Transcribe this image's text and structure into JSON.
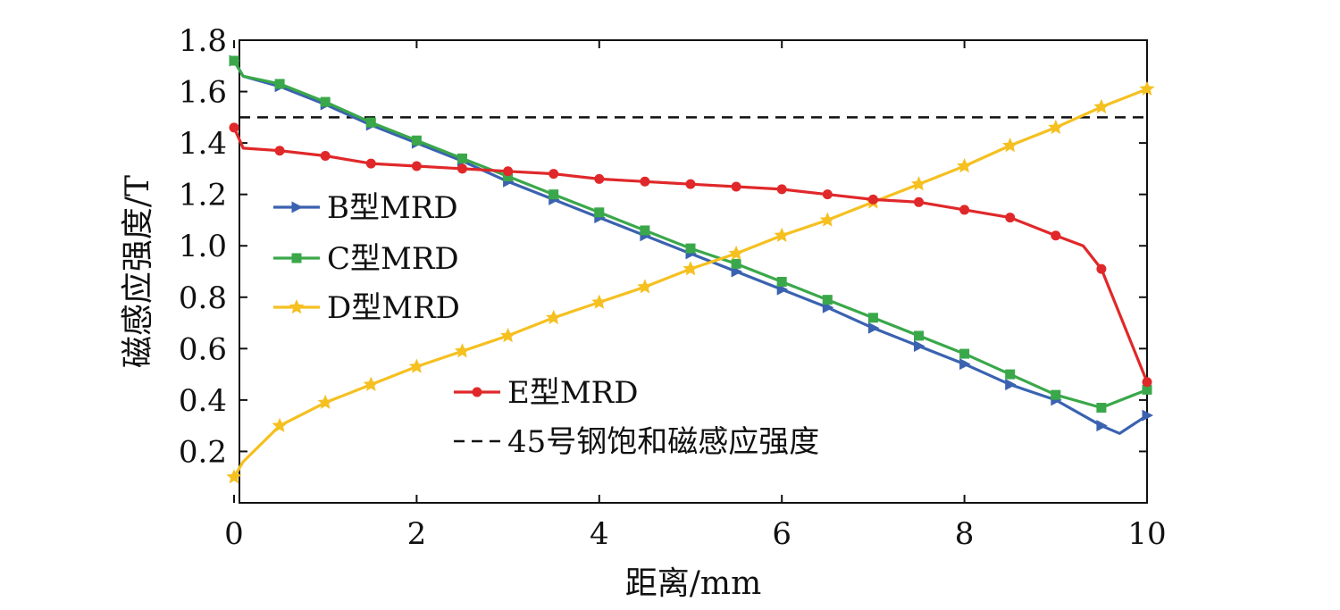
{
  "chart_data": {
    "type": "line",
    "title": "",
    "xlabel": "距离/mm",
    "ylabel": "磁感应强度/T",
    "xlim": [
      0,
      10
    ],
    "ylim": [
      0,
      1.8
    ],
    "xticks": [
      "0",
      "2",
      "4",
      "6",
      "8",
      "10"
    ],
    "xtick_values": [
      0,
      2,
      4,
      6,
      8,
      10
    ],
    "yticks": [
      "0.2",
      "0.4",
      "0.6",
      "0.8",
      "1.0",
      "1.2",
      "1.4",
      "1.6",
      "1.8"
    ],
    "ytick_values": [
      0.2,
      0.4,
      0.6,
      0.8,
      1.0,
      1.2,
      1.4,
      1.6,
      1.8
    ],
    "grid": false,
    "legend_position": "left",
    "series": [
      {
        "name": "B型MRD",
        "color": "#3a62b0",
        "marker": "triangle-right",
        "x": [
          0,
          0.1,
          0.5,
          1.0,
          1.5,
          2.0,
          2.5,
          3.0,
          3.5,
          4.0,
          4.5,
          5.0,
          5.5,
          6.0,
          6.5,
          7.0,
          7.5,
          8.0,
          8.5,
          9.0,
          9.5,
          9.7,
          10.0
        ],
        "y": [
          1.72,
          1.66,
          1.62,
          1.55,
          1.47,
          1.4,
          1.33,
          1.25,
          1.18,
          1.11,
          1.04,
          0.97,
          0.9,
          0.83,
          0.76,
          0.68,
          0.61,
          0.54,
          0.46,
          0.4,
          0.3,
          0.27,
          0.34
        ],
        "marker_indices": [
          0,
          2,
          3,
          4,
          5,
          6,
          7,
          8,
          9,
          10,
          11,
          12,
          13,
          14,
          15,
          16,
          17,
          18,
          19,
          20,
          22
        ]
      },
      {
        "name": "C型MRD",
        "color": "#3aa84a",
        "marker": "square",
        "x": [
          0,
          0.1,
          0.5,
          1.0,
          1.5,
          2.0,
          2.5,
          3.0,
          3.5,
          4.0,
          4.5,
          5.0,
          5.5,
          6.0,
          6.5,
          7.0,
          7.5,
          8.0,
          8.5,
          9.0,
          9.5,
          10.0
        ],
        "y": [
          1.72,
          1.66,
          1.63,
          1.56,
          1.48,
          1.41,
          1.34,
          1.27,
          1.2,
          1.13,
          1.06,
          0.99,
          0.93,
          0.86,
          0.79,
          0.72,
          0.65,
          0.58,
          0.5,
          0.42,
          0.37,
          0.44
        ],
        "marker_indices": [
          0,
          2,
          3,
          4,
          5,
          6,
          7,
          8,
          9,
          10,
          11,
          12,
          13,
          14,
          15,
          16,
          17,
          18,
          19,
          20,
          21
        ]
      },
      {
        "name": "D型MRD",
        "color": "#f5c020",
        "marker": "star",
        "x": [
          0,
          0.1,
          0.5,
          1.0,
          1.5,
          2.0,
          2.5,
          3.0,
          3.5,
          4.0,
          4.5,
          5.0,
          5.5,
          6.0,
          6.5,
          7.0,
          7.5,
          8.0,
          8.5,
          9.0,
          9.5,
          10.0
        ],
        "y": [
          0.1,
          0.16,
          0.3,
          0.39,
          0.46,
          0.53,
          0.59,
          0.65,
          0.72,
          0.78,
          0.84,
          0.91,
          0.97,
          1.04,
          1.1,
          1.17,
          1.24,
          1.31,
          1.39,
          1.46,
          1.54,
          1.61
        ],
        "marker_indices": [
          0,
          2,
          3,
          4,
          5,
          6,
          7,
          8,
          9,
          10,
          11,
          12,
          13,
          14,
          15,
          16,
          17,
          18,
          19,
          20,
          21
        ]
      },
      {
        "name": "E型MRD",
        "color": "#e0282a",
        "marker": "circle",
        "x": [
          0,
          0.1,
          0.5,
          1.0,
          1.5,
          2.0,
          2.5,
          3.0,
          3.5,
          4.0,
          4.5,
          5.0,
          5.5,
          6.0,
          6.5,
          7.0,
          7.5,
          8.0,
          8.5,
          9.0,
          9.3,
          9.5,
          10.0
        ],
        "y": [
          1.46,
          1.38,
          1.37,
          1.35,
          1.32,
          1.31,
          1.3,
          1.29,
          1.28,
          1.26,
          1.25,
          1.24,
          1.23,
          1.22,
          1.2,
          1.18,
          1.17,
          1.14,
          1.11,
          1.04,
          1.0,
          0.91,
          0.47
        ],
        "marker_indices": [
          0,
          2,
          3,
          4,
          5,
          6,
          7,
          8,
          9,
          10,
          11,
          12,
          13,
          14,
          15,
          16,
          17,
          18,
          19,
          21,
          22
        ]
      }
    ],
    "reference_line": {
      "name": "45号钢饱和磁感应强度",
      "y": 1.5,
      "color": "#111111",
      "style": "dashed"
    }
  }
}
